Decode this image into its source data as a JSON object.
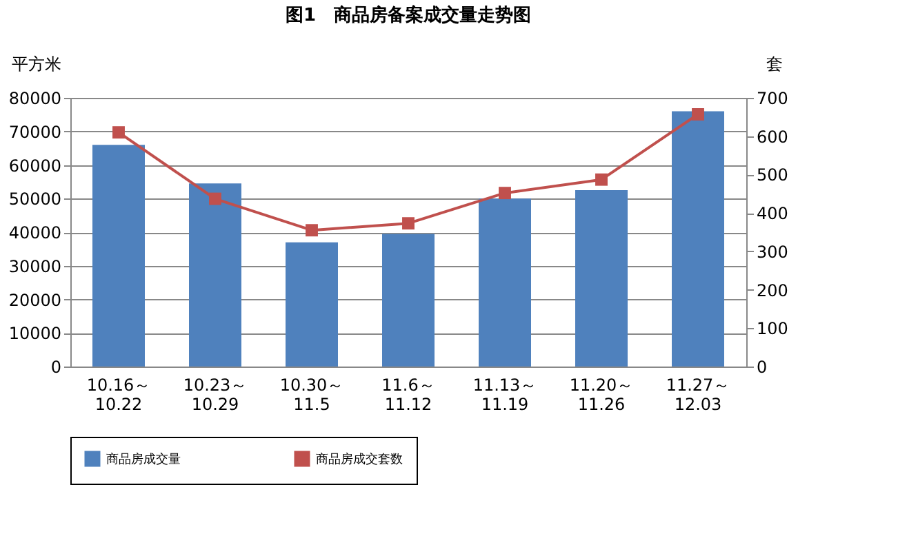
{
  "chart_data": {
    "type": "bar",
    "title": "图1　商品房备案成交量走势图",
    "ylabel": "平方米",
    "y2label": "套",
    "categories": [
      "10.16～\n10.22",
      "10.23～\n10.29",
      "10.30～\n11.5",
      "11.6～\n11.12",
      "11.13～\n11.19",
      "11.20～\n11.26",
      "11.27～\n12.03"
    ],
    "series": [
      {
        "name": "商品房成交量",
        "color": "#4f81bd",
        "values": [
          66000,
          54500,
          37000,
          39500,
          50000,
          52500,
          76000
        ]
      },
      {
        "name": "商品房成交套数",
        "type": "line",
        "axis": "y2",
        "color": "#c0504d",
        "marker": "square",
        "values": [
          610,
          437,
          355,
          373,
          452,
          487,
          657
        ]
      }
    ],
    "ylim": [
      0,
      80000
    ],
    "yticks": [
      0,
      10000,
      20000,
      30000,
      40000,
      50000,
      60000,
      70000,
      80000
    ],
    "y2lim": [
      0,
      700
    ],
    "y2ticks": [
      0,
      100,
      200,
      300,
      400,
      500,
      600,
      700
    ],
    "grid": "y",
    "legend": "bottom"
  }
}
